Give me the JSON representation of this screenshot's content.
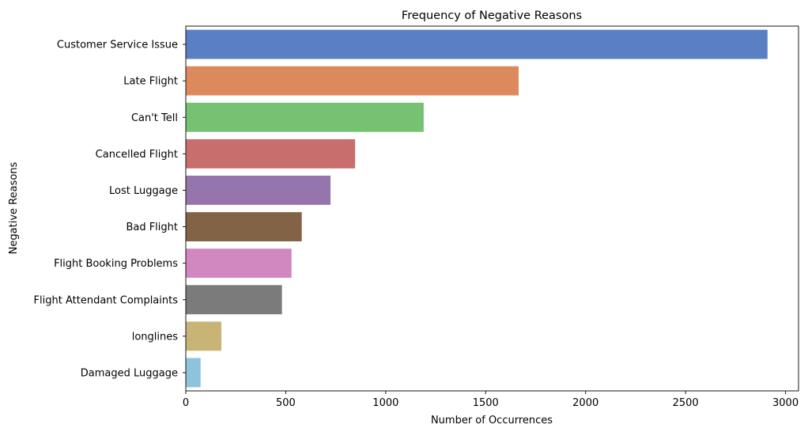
{
  "chart_data": {
    "type": "bar",
    "orientation": "horizontal",
    "title": "Frequency of Negative Reasons",
    "xlabel": "Number of Occurrences",
    "ylabel": "Negative Reasons",
    "xlim": [
      0,
      3065
    ],
    "xticks": [
      0,
      500,
      1000,
      1500,
      2000,
      2500,
      3000
    ],
    "grid": false,
    "categories": [
      "Customer Service Issue",
      "Late Flight",
      "Can't Tell",
      "Cancelled Flight",
      "Lost Luggage",
      "Bad Flight",
      "Flight Booking Problems",
      "Flight Attendant Complaints",
      "longlines",
      "Damaged Luggage"
    ],
    "values": [
      2910,
      1665,
      1190,
      847,
      724,
      580,
      529,
      481,
      178,
      74
    ],
    "colors": [
      "#5a7fc3",
      "#dc8a5d",
      "#75c272",
      "#c86e6d",
      "#9675ac",
      "#836345",
      "#d187c0",
      "#7b7b7b",
      "#c8b575",
      "#8dc3dd"
    ]
  }
}
